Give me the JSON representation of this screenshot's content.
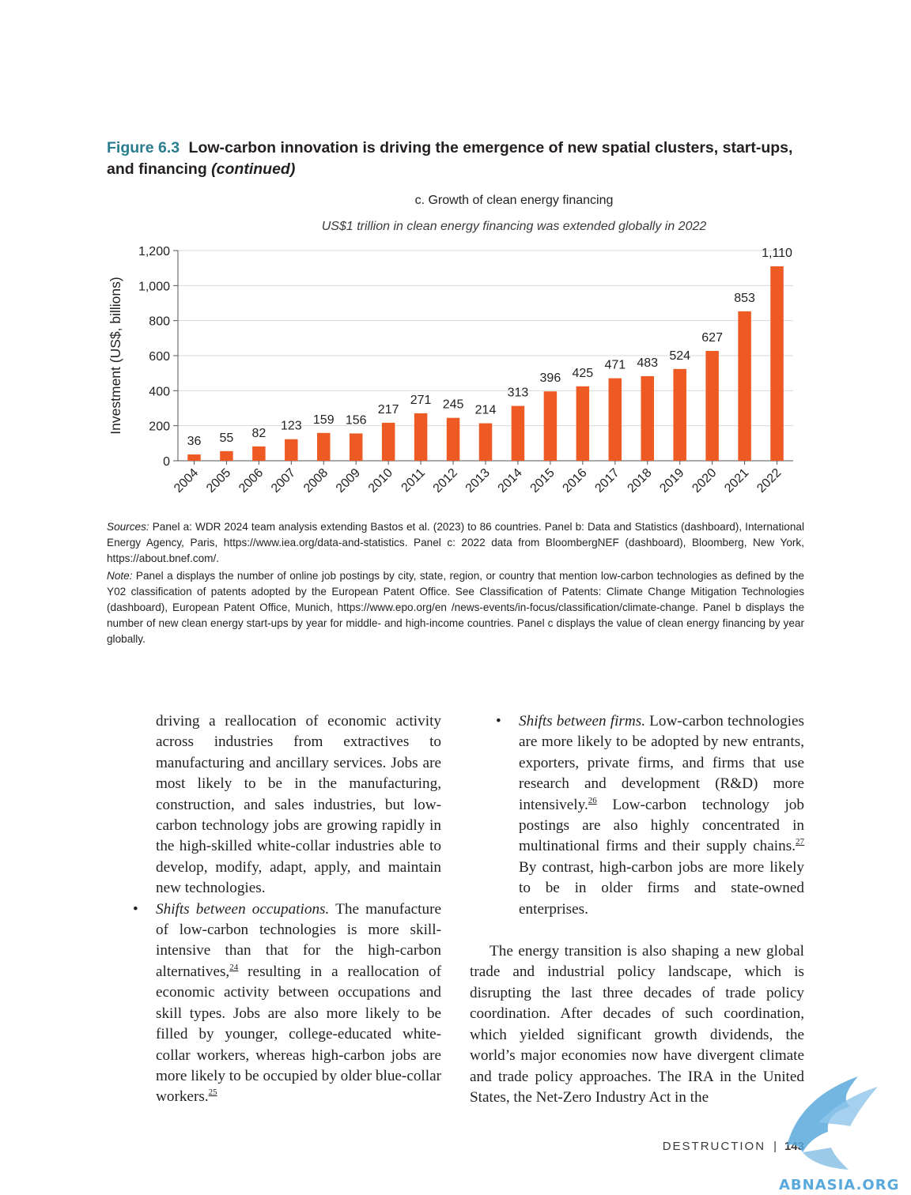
{
  "figure": {
    "number": "Figure 6.3",
    "title": "Low-carbon innovation is driving the emergence of new spatial clusters, start-ups, and financing",
    "continued": "(continued)"
  },
  "panel": {
    "title": "c. Growth of clean energy financing",
    "subtitle": "US$1 trillion in clean energy financing was extended globally in 2022"
  },
  "chart_data": {
    "type": "bar",
    "title": "c. Growth of clean energy financing",
    "subtitle": "US$1 trillion in clean energy financing was extended globally in 2022",
    "ylabel": "Investment (US$, billions)",
    "xlabel": "",
    "ylim": [
      0,
      1200
    ],
    "yticks": [
      "0",
      "200",
      "400",
      "600",
      "800",
      "1,000",
      "1,200"
    ],
    "categories": [
      "2004",
      "2005",
      "2006",
      "2007",
      "2008",
      "2009",
      "2010",
      "2011",
      "2012",
      "2013",
      "2014",
      "2015",
      "2016",
      "2017",
      "2018",
      "2019",
      "2020",
      "2021",
      "2022"
    ],
    "values": [
      36,
      55,
      82,
      123,
      159,
      156,
      217,
      271,
      245,
      214,
      313,
      396,
      425,
      471,
      483,
      524,
      627,
      853,
      1110
    ],
    "labels": [
      "36",
      "55",
      "82",
      "123",
      "159",
      "156",
      "217",
      "271",
      "245",
      "214",
      "313",
      "396",
      "425",
      "471",
      "483",
      "524",
      "627",
      "853",
      "1,110"
    ],
    "grid": true,
    "bar_color": "#ee5a24"
  },
  "notes": {
    "sources_lead": "Sources:",
    "sources_text": "Panel a: WDR 2024 team analysis extending Bastos et al. (2023) to 86 countries. Panel b: Data and Statistics (dashboard), International Energy Agency, Paris, https://www.iea.org/data-and-statistics. Panel c: 2022 data from BloombergNEF (dashboard), Bloomberg, New York, https://about.bnef.com/.",
    "note_lead": "Note:",
    "note_text": "Panel a displays the number of online job postings by city, state, region, or country that mention low-carbon technologies as defined by the Y02 classification of patents adopted by the European Patent Office. See Classification of Patents: Climate Change Mitigation Technologies (dashboard), European Patent Office, Munich, https://www.epo.org/en /news-events/in-focus/classification/climate-change. Panel b displays the number of new clean energy start-ups by year for middle- and high-income countries. Panel c displays the value of clean energy financing by year globally."
  },
  "body": {
    "left_p1": "driving a reallocation of economic activity across industries from extractives to manufacturing and ancillary services. Jobs are most likely to be in the manufacturing, construction, and sales industries, but low-carbon technology jobs are growing rapidly in the high-skilled white-collar industries able to develop, modify, adapt, apply, and maintain new technologies.",
    "bullet_symbol": "•",
    "b1_lead": "Shifts between occupations.",
    "b1_text_a": " The manufacture of low-carbon technologies is more skill-intensive than that for the high-carbon alternatives,",
    "b1_ref_a": "24",
    "b1_text_b": " resulting in a reallocation of economic activity between occupations and skill types. Jobs are also more likely to be filled by younger, college-educated white-collar workers, whereas high-carbon jobs are more likely to be occupied by older blue-collar workers.",
    "b1_ref_b": "25",
    "b2_lead": "Shifts between firms.",
    "b2_text_a": " Low-carbon technologies are more likely to be adopted by new entrants, exporters, private firms, and firms that use research and development (R&D) more intensively.",
    "b2_ref_a": "26",
    "b2_text_b": " Low-carbon technology job postings are also highly concentrated in multinational firms and their supply chains.",
    "b2_ref_b": "27",
    "b2_text_c": " By contrast, high-carbon jobs are more likely to be in older firms and state-owned enterprises.",
    "right_p": "The energy transition is also shaping a new global trade and industrial policy landscape, which is disrupting the last three decades of trade policy coordination. After decades of such coordination, which yielded significant growth dividends, the world’s major economies now have divergent climate and trade policy approaches. The IRA in the United States, the Net-Zero Industry Act in the"
  },
  "footer": {
    "section": "DESTRUCTION",
    "separator": "|",
    "page": "143"
  },
  "watermark": {
    "text": "ABNASIA.ORG",
    "color": "#5aa9dc"
  }
}
